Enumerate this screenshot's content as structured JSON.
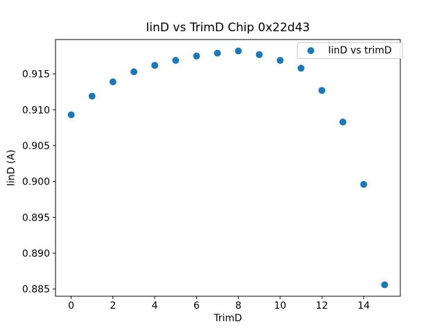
{
  "chart_data": {
    "type": "scatter",
    "title": "IinD vs TrimD Chip 0x22d43",
    "xlabel": "TrimD",
    "ylabel": "IinD (A)",
    "legend": [
      "IinD vs trimD"
    ],
    "legend_position": "upper right",
    "x": [
      0,
      1,
      2,
      3,
      4,
      5,
      6,
      7,
      8,
      9,
      10,
      11,
      12,
      13,
      14,
      15
    ],
    "y": [
      0.9093,
      0.9119,
      0.9139,
      0.9153,
      0.9162,
      0.9169,
      0.9175,
      0.9179,
      0.9182,
      0.9177,
      0.9169,
      0.9158,
      0.9127,
      0.9083,
      0.8996,
      0.8856
    ],
    "xticks": [
      0,
      2,
      4,
      6,
      8,
      10,
      12,
      14
    ],
    "yticks": [
      0.885,
      0.89,
      0.895,
      0.9,
      0.905,
      0.91,
      0.915
    ],
    "xlim": [
      -0.75,
      15.75
    ],
    "ylim": [
      0.884,
      0.9198
    ],
    "grid": false,
    "marker_color": "#1f77b4",
    "spine_color": "#000000",
    "background": "#ffffff"
  }
}
